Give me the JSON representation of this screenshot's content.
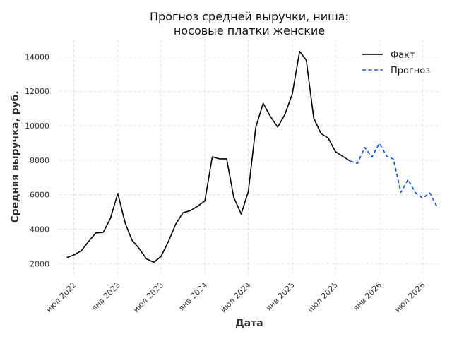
{
  "chart_data": {
    "type": "line",
    "title": "Прогноз средней выручки, ниша:\nносовые платки женские",
    "xlabel": "Дата",
    "ylabel": "Средняя выручка, руб.",
    "ylim": [
      1400,
      15000
    ],
    "xlim": [
      "2022-05-01",
      "2026-09-15"
    ],
    "yticks": [
      2000,
      4000,
      6000,
      8000,
      10000,
      12000,
      14000
    ],
    "xticks": [
      {
        "date": "2022-07-01",
        "label": "июл 2022"
      },
      {
        "date": "2023-01-01",
        "label": "янв 2023"
      },
      {
        "date": "2023-07-01",
        "label": "июл 2023"
      },
      {
        "date": "2024-01-01",
        "label": "янв 2024"
      },
      {
        "date": "2024-07-01",
        "label": "июл 2024"
      },
      {
        "date": "2025-01-01",
        "label": "янв 2025"
      },
      {
        "date": "2025-07-01",
        "label": "июл 2025"
      },
      {
        "date": "2026-01-01",
        "label": "янв 2026"
      },
      {
        "date": "2026-07-01",
        "label": "июл 2026"
      }
    ],
    "grid": true,
    "legend_position": "top-right",
    "series": [
      {
        "name": "Факт",
        "color": "#000000",
        "style": "solid",
        "points": [
          [
            "2022-06-01",
            2350
          ],
          [
            "2022-07-01",
            2500
          ],
          [
            "2022-08-01",
            2750
          ],
          [
            "2022-09-01",
            3300
          ],
          [
            "2022-10-01",
            3780
          ],
          [
            "2022-11-01",
            3820
          ],
          [
            "2022-12-01",
            4620
          ],
          [
            "2023-01-01",
            6080
          ],
          [
            "2023-02-01",
            4350
          ],
          [
            "2023-03-01",
            3380
          ],
          [
            "2023-04-01",
            2870
          ],
          [
            "2023-05-01",
            2280
          ],
          [
            "2023-06-01",
            2080
          ],
          [
            "2023-07-01",
            2420
          ],
          [
            "2023-08-01",
            3280
          ],
          [
            "2023-09-01",
            4300
          ],
          [
            "2023-10-01",
            4950
          ],
          [
            "2023-11-01",
            5080
          ],
          [
            "2023-12-01",
            5330
          ],
          [
            "2024-01-01",
            5650
          ],
          [
            "2024-02-01",
            8200
          ],
          [
            "2024-03-01",
            8080
          ],
          [
            "2024-04-01",
            8080
          ],
          [
            "2024-05-01",
            5850
          ],
          [
            "2024-06-01",
            4880
          ],
          [
            "2024-07-01",
            6180
          ],
          [
            "2024-08-01",
            9900
          ],
          [
            "2024-09-01",
            11300
          ],
          [
            "2024-10-01",
            10550
          ],
          [
            "2024-11-01",
            9920
          ],
          [
            "2024-12-01",
            10650
          ],
          [
            "2025-01-01",
            11830
          ],
          [
            "2025-02-01",
            14320
          ],
          [
            "2025-03-01",
            13800
          ],
          [
            "2025-04-01",
            10450
          ],
          [
            "2025-05-01",
            9550
          ],
          [
            "2025-06-01",
            9280
          ],
          [
            "2025-07-01",
            8500
          ],
          [
            "2025-08-01",
            8220
          ],
          [
            "2025-09-01",
            7950
          ]
        ]
      },
      {
        "name": "Прогноз",
        "color": "#0b4fd6",
        "style": "dashed",
        "points": [
          [
            "2025-09-01",
            7950
          ],
          [
            "2025-10-01",
            7820
          ],
          [
            "2025-11-01",
            8750
          ],
          [
            "2025-12-01",
            8180
          ],
          [
            "2026-01-01",
            8980
          ],
          [
            "2026-02-01",
            8230
          ],
          [
            "2026-03-01",
            8060
          ],
          [
            "2026-04-01",
            6130
          ],
          [
            "2026-05-01",
            6880
          ],
          [
            "2026-06-01",
            6120
          ],
          [
            "2026-07-01",
            5810
          ],
          [
            "2026-08-01",
            6100
          ],
          [
            "2026-09-01",
            5250
          ]
        ]
      }
    ]
  }
}
